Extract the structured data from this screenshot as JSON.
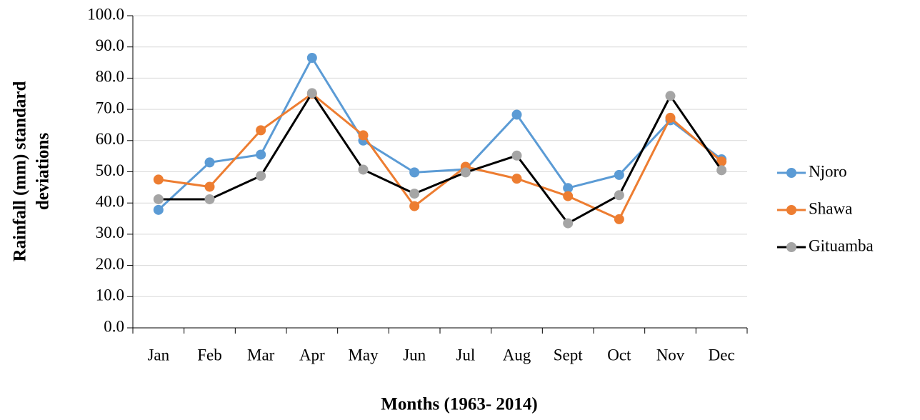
{
  "chart_data": {
    "type": "line",
    "xlabel": "Months (1963- 2014)",
    "ylabel": [
      "Rainfall (mm) standard",
      "deviations"
    ],
    "categories": [
      "Jan",
      "Feb",
      "Mar",
      "Apr",
      "May",
      "Jun",
      "Jul",
      "Aug",
      "Sept",
      "Oct",
      "Nov",
      "Dec"
    ],
    "series": [
      {
        "name": "Njoro",
        "color": "#5b9bd5",
        "marker_color": "#5b9bd5",
        "values": [
          37.8,
          53.0,
          55.5,
          86.5,
          60.0,
          49.8,
          50.8,
          68.3,
          44.8,
          49.0,
          66.5,
          54.0
        ]
      },
      {
        "name": "Shawa",
        "color": "#ed7d31",
        "marker_color": "#ed7d31",
        "values": [
          47.5,
          45.2,
          63.3,
          75.0,
          61.7,
          39.0,
          51.6,
          47.8,
          42.2,
          34.8,
          67.3,
          53.3
        ]
      },
      {
        "name": "Gituamba",
        "color": "#000000",
        "marker_color": "#a5a5a5",
        "values": [
          41.2,
          41.2,
          48.7,
          75.2,
          50.7,
          43.0,
          49.8,
          55.2,
          33.5,
          42.5,
          74.3,
          50.5
        ]
      }
    ],
    "ylim": [
      0,
      100
    ],
    "yticks": [
      {
        "value": 0,
        "label": "0.0"
      },
      {
        "value": 10,
        "label": "10.0"
      },
      {
        "value": 20,
        "label": "20.0"
      },
      {
        "value": 30,
        "label": "30.0"
      },
      {
        "value": 40,
        "label": "40.0"
      },
      {
        "value": 50,
        "label": "50.0"
      },
      {
        "value": 60,
        "label": "60.0"
      },
      {
        "value": 70,
        "label": "70.0"
      },
      {
        "value": 80,
        "label": "80.0"
      },
      {
        "value": 90,
        "label": "90.0"
      },
      {
        "value": 100,
        "label": "100.0"
      }
    ],
    "grid": true,
    "legend": "right"
  }
}
